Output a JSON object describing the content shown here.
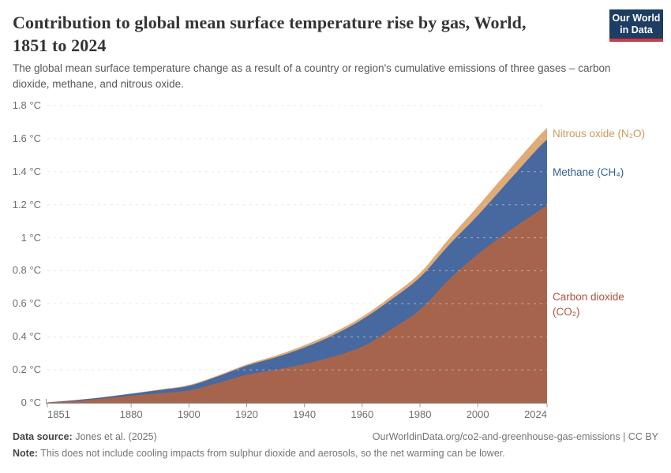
{
  "header": {
    "title_lines": [
      "Contribution to global mean surface temperature rise by gas, World,",
      "1851 to 2024"
    ],
    "subtitle": "The global mean surface temperature change as a result of a country or region's cumulative emissions of three gases – carbon dioxide, methane, and nitrous oxide.",
    "logo": {
      "line1": "Our World",
      "line2": "in Data",
      "bg_color": "#1D3D63",
      "stripe_color": "#CF3B43"
    }
  },
  "chart_data": {
    "type": "area",
    "stacked": true,
    "title": "Contribution to global mean surface temperature rise by gas, World, 1851 to 2024",
    "xlabel": "",
    "ylabel": "",
    "xlim": [
      1851,
      2024
    ],
    "ylim": [
      0,
      1.8
    ],
    "grid": "horizontal-dashed",
    "legend_position": "right-edge-labels",
    "x": [
      1851,
      1860,
      1870,
      1880,
      1890,
      1900,
      1910,
      1920,
      1930,
      1940,
      1950,
      1960,
      1970,
      1980,
      1990,
      2000,
      2010,
      2020,
      2024
    ],
    "series": [
      {
        "name": "carbon-dioxide",
        "label": "Carbon dioxide (CO₂)",
        "area_color": "#A6644D",
        "label_color": "#AE5340",
        "values": [
          0.002,
          0.01,
          0.025,
          0.043,
          0.058,
          0.075,
          0.12,
          0.17,
          0.2,
          0.235,
          0.28,
          0.34,
          0.445,
          0.565,
          0.745,
          0.9,
          1.03,
          1.15,
          1.195
        ]
      },
      {
        "name": "methane",
        "label": "Methane (CH₄)",
        "area_color": "#48699F",
        "label_color": "#305F99",
        "values": [
          0.001,
          0.005,
          0.008,
          0.012,
          0.02,
          0.028,
          0.04,
          0.055,
          0.075,
          0.1,
          0.13,
          0.165,
          0.18,
          0.195,
          0.21,
          0.235,
          0.3,
          0.375,
          0.4
        ]
      },
      {
        "name": "nitrous-oxide",
        "label": "Nitrous oxide (N₂O)",
        "area_color": "#DFAB77",
        "label_color": "#CB9A5F",
        "values": [
          0.0,
          0.001,
          0.001,
          0.002,
          0.003,
          0.005,
          0.006,
          0.008,
          0.011,
          0.014,
          0.015,
          0.016,
          0.02,
          0.026,
          0.038,
          0.055,
          0.063,
          0.068,
          0.07
        ]
      }
    ],
    "x_ticks": [
      1851,
      1880,
      1900,
      1920,
      1940,
      1960,
      1980,
      2000,
      2024
    ],
    "y_ticks": [
      {
        "value": 0.0,
        "label": "0 °C"
      },
      {
        "value": 0.2,
        "label": "0.2 °C"
      },
      {
        "value": 0.4,
        "label": "0.4 °C"
      },
      {
        "value": 0.6,
        "label": "0.6 °C"
      },
      {
        "value": 0.8,
        "label": "0.8 °C"
      },
      {
        "value": 1.0,
        "label": "1 °C"
      },
      {
        "value": 1.2,
        "label": "1.2 °C"
      },
      {
        "value": 1.4,
        "label": "1.4 °C"
      },
      {
        "value": 1.6,
        "label": "1.6 °C"
      },
      {
        "value": 1.8,
        "label": "1.8 °C"
      }
    ]
  },
  "footer": {
    "source_label": "Data source:",
    "source_value": "Jones et al. (2025)",
    "url": "OurWorldinData.org/co2-and-greenhouse-gas-emissions",
    "separator": "|",
    "license": "CC BY",
    "note_label": "Note:",
    "note_value": "This does not include cooling impacts from sulphur dioxide and aerosols, so the net warming can be lower."
  }
}
